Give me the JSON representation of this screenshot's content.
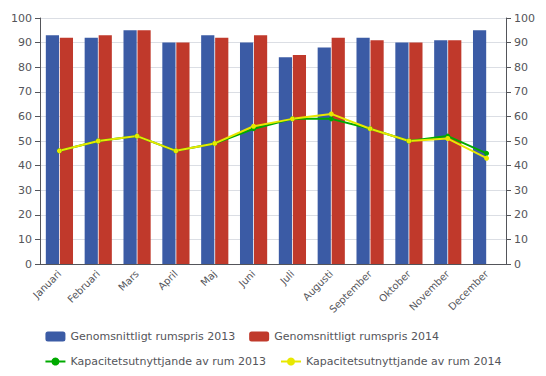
{
  "chart_data": {
    "type": "bar",
    "categories": [
      "Januari",
      "Februari",
      "Mars",
      "April",
      "Maj",
      "Juni",
      "Juli",
      "Augusti",
      "September",
      "Oktober",
      "November",
      "December"
    ],
    "series": [
      {
        "name": "Genomsnittligt rumspris 2013",
        "type": "bar",
        "color": "#3B5BA5",
        "values": [
          93,
          92,
          95,
          90,
          93,
          90,
          84,
          88,
          92,
          90,
          91,
          95
        ]
      },
      {
        "name": "Genomsnittligt rumspris 2014",
        "type": "bar",
        "color": "#C0392B",
        "values": [
          92,
          93,
          95,
          90,
          92,
          93,
          85,
          92,
          91,
          90,
          91,
          0
        ]
      },
      {
        "name": "Kapacitetsutnyttjande av rum 2013",
        "type": "line",
        "color": "#00AA00",
        "marker": "circle",
        "axis": "y2",
        "values": [
          46,
          50,
          52,
          46,
          49,
          55,
          59,
          59,
          55,
          50,
          52,
          45
        ]
      },
      {
        "name": "Kapacitetsutnyttjande av rum 2014",
        "type": "line",
        "color": "#E8E800",
        "marker": "circle",
        "axis": "y2",
        "values": [
          46,
          50,
          52,
          46,
          49,
          56,
          59,
          61,
          55,
          50,
          51,
          43
        ]
      }
    ],
    "ylim": [
      0,
      100
    ],
    "yticks": [
      0,
      10,
      20,
      30,
      40,
      50,
      60,
      70,
      80,
      90,
      100
    ],
    "y2lim": [
      0,
      100
    ],
    "y2ticks": [
      0,
      10,
      20,
      30,
      40,
      50,
      60,
      70,
      80,
      90,
      100
    ],
    "grid": true,
    "legend": "bottom"
  }
}
